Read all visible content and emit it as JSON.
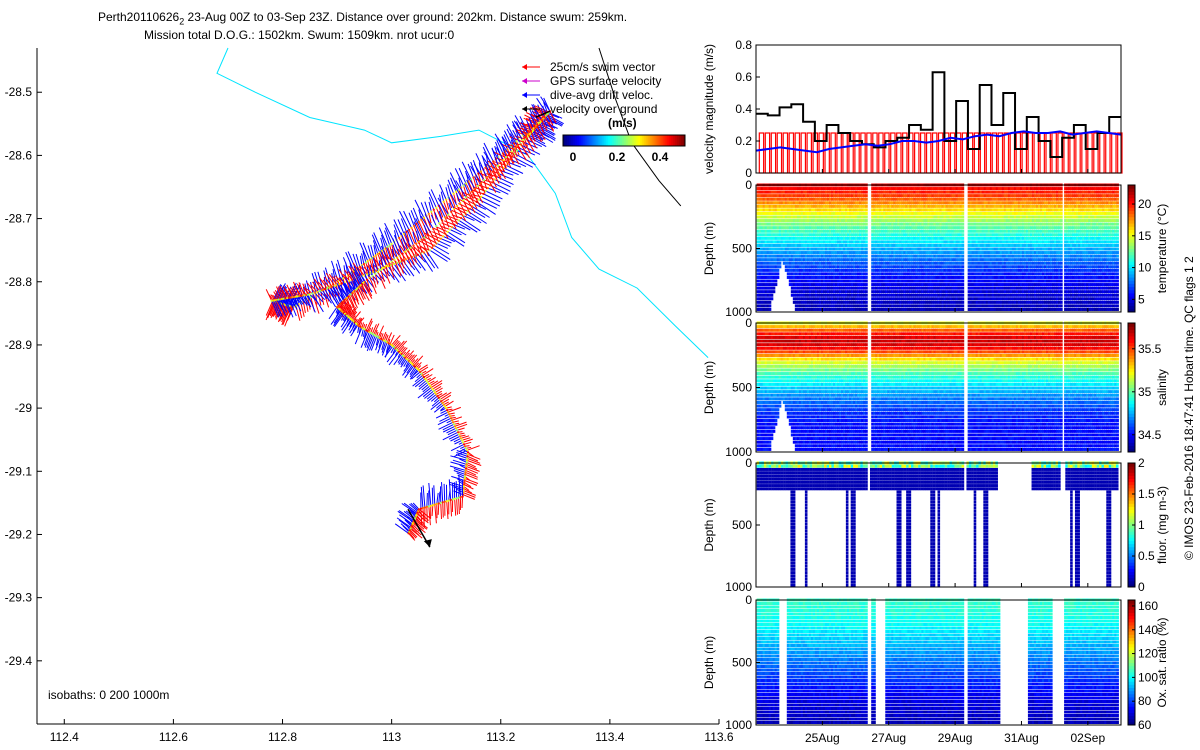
{
  "figure": {
    "title_line1_prefix": "Perth20110626",
    "title_line1_sub": "2",
    "title_line1_rest": " 23-Aug 00Z to 03-Sep 23Z. Distance over ground: 202km. Distance swum: 259km.",
    "title_line2": "Mission total D.O.G.: 1502km. Swum: 1509km. nrot ucur:0",
    "credit": "© IMOS 23-Feb-2016 18:47:41 Hobart time. QC flags 1  2"
  },
  "colors": {
    "swim": "#ff0000",
    "gps": "#cc00cc",
    "dive": "#0000ff",
    "ground": "#000000",
    "isobath": "#00e5ff",
    "axis": "#000000"
  },
  "chart_data": [
    {
      "type": "scatter",
      "id": "track_map",
      "xlim": [
        112.35,
        113.6
      ],
      "ylim": [
        -29.5,
        -28.43
      ],
      "xticks": [
        112.4,
        112.6,
        112.8,
        113,
        113.2,
        113.4,
        113.6
      ],
      "xtick_labels": [
        "112.4",
        "112.6",
        "112.8",
        "113",
        "113.2",
        "113.4",
        "113.6"
      ],
      "yticks": [
        -28.5,
        -28.6,
        -28.7,
        -28.8,
        -28.9,
        -29,
        -29.1,
        -29.2,
        -29.3,
        -29.4
      ],
      "ytick_labels": [
        "-28.5",
        "-28.6",
        "-28.7",
        "-28.8",
        "-28.9",
        "-29",
        "-29.1",
        "-29.2",
        "-29.3",
        "-29.4"
      ],
      "legend": [
        "25cm/s swim vector",
        "GPS surface velocity",
        "dive-avg drift veloc.",
        "velocity over ground"
      ],
      "colorbar_label": "(m/s)",
      "colorbar_ticks": [
        "0",
        "0.2",
        "0.4"
      ],
      "isobath_note": "isobaths: 0   200  1000m",
      "track": [
        [
          113.29,
          -28.53
        ],
        [
          113.2,
          -28.6
        ],
        [
          113.1,
          -28.67
        ],
        [
          113.0,
          -28.74
        ],
        [
          112.92,
          -28.79
        ],
        [
          112.82,
          -28.84
        ],
        [
          112.78,
          -28.83
        ],
        [
          112.85,
          -28.82
        ],
        [
          112.95,
          -28.79
        ],
        [
          113.07,
          -28.75
        ],
        [
          113.16,
          -28.67
        ],
        [
          113.25,
          -28.57
        ],
        [
          113.29,
          -28.53
        ],
        [
          113.18,
          -28.63
        ],
        [
          113.06,
          -28.73
        ],
        [
          112.95,
          -28.8
        ],
        [
          112.9,
          -28.84
        ],
        [
          112.94,
          -28.87
        ],
        [
          113.0,
          -28.9
        ],
        [
          113.05,
          -28.94
        ],
        [
          113.1,
          -29.0
        ],
        [
          113.14,
          -29.07
        ],
        [
          113.13,
          -29.14
        ],
        [
          113.05,
          -29.16
        ],
        [
          113.03,
          -29.2
        ]
      ],
      "ground_vector": [
        [
          113.03,
          -29.16
        ],
        [
          113.07,
          -29.22
        ]
      ],
      "isobath_0m": [
        [
          112.7,
          -28.43
        ],
        [
          112.68,
          -28.47
        ],
        [
          112.75,
          -28.5
        ],
        [
          112.85,
          -28.54
        ],
        [
          112.95,
          -28.56
        ],
        [
          113.0,
          -28.58
        ],
        [
          113.09,
          -28.57
        ],
        [
          113.16,
          -28.56
        ],
        [
          113.25,
          -28.6
        ],
        [
          113.3,
          -28.66
        ],
        [
          113.33,
          -28.73
        ],
        [
          113.38,
          -28.78
        ],
        [
          113.45,
          -28.81
        ],
        [
          113.52,
          -28.87
        ],
        [
          113.58,
          -28.92
        ]
      ],
      "isobath_200m": [
        [
          113.38,
          -28.43
        ],
        [
          113.41,
          -28.51
        ],
        [
          113.44,
          -28.58
        ],
        [
          113.49,
          -28.64
        ],
        [
          113.53,
          -28.68
        ]
      ]
    },
    {
      "type": "line",
      "id": "velocity",
      "ylabel": "velocity magnitude (m/s)",
      "xlim": [
        0,
        11
      ],
      "ylim": [
        0,
        0.8
      ],
      "yticks": [
        0,
        0.2,
        0.4,
        0.6,
        0.8
      ],
      "ytick_labels": [
        "0",
        "0.2",
        "0.4",
        "0.6",
        "0.8"
      ],
      "xticks": [
        2,
        4,
        6,
        8,
        10
      ],
      "xtick_labels": [
        "25Aug",
        "27Aug",
        "29Aug",
        "31Aug",
        "02Sep"
      ],
      "series": [
        {
          "name": "swim (red bars)",
          "values_note": "~0.25 m/s steps",
          "values": [
            0.25,
            0,
            0.25,
            0,
            0.25
          ]
        },
        {
          "name": "over ground (black)",
          "values": [
            0.37,
            0.36,
            0.41,
            0.43,
            0.32,
            0.2,
            0.3,
            0.25,
            0.2,
            0.18,
            0.16,
            0.2,
            0.22,
            0.3,
            0.27,
            0.63,
            0.2,
            0.45,
            0.15,
            0.55,
            0.3,
            0.5,
            0.15,
            0.35,
            0.2,
            0.1,
            0.22,
            0.3,
            0.15,
            0.25,
            0.35
          ]
        },
        {
          "name": "dive-avg (blue)",
          "values": [
            0.14,
            0.15,
            0.16,
            0.15,
            0.14,
            0.13,
            0.15,
            0.16,
            0.17,
            0.18,
            0.17,
            0.18,
            0.2,
            0.2,
            0.19,
            0.2,
            0.22,
            0.21,
            0.23,
            0.24,
            0.23,
            0.25,
            0.26,
            0.25,
            0.25,
            0.26,
            0.24,
            0.25,
            0.26,
            0.25,
            0.24
          ]
        }
      ]
    },
    {
      "type": "heatmap",
      "id": "temperature",
      "ylabel": "Depth (m)",
      "clabel": "temperature (°C)",
      "ylim": [
        1000,
        0
      ],
      "yticks": [
        0,
        500,
        1000
      ],
      "ytick_labels": [
        "0",
        "500",
        "1000"
      ],
      "cticks": [
        "5",
        "10",
        "15",
        "20"
      ],
      "crange": [
        3,
        23
      ],
      "profile_depths": [
        0,
        50,
        100,
        150,
        200,
        300,
        400,
        500,
        600,
        700,
        800,
        900,
        1000
      ],
      "profile_values": [
        21,
        20,
        19,
        17.5,
        16,
        13,
        11,
        9,
        7.5,
        6,
        5,
        4.5,
        4
      ]
    },
    {
      "type": "heatmap",
      "id": "salinity",
      "ylabel": "Depth (m)",
      "clabel": "salinity",
      "ylim": [
        1000,
        0
      ],
      "yticks": [
        0,
        500,
        1000
      ],
      "ytick_labels": [
        "0",
        "500",
        "1000"
      ],
      "cticks": [
        "34.5",
        "35",
        "35.5"
      ],
      "crange": [
        34.3,
        35.8
      ],
      "profile_depths": [
        0,
        50,
        100,
        150,
        200,
        300,
        400,
        500,
        600,
        700,
        800,
        900,
        1000
      ],
      "profile_values": [
        35.2,
        35.45,
        35.65,
        35.7,
        35.6,
        35.2,
        34.95,
        34.8,
        34.65,
        34.55,
        34.5,
        34.5,
        34.5
      ]
    },
    {
      "type": "scatter",
      "id": "fluorescence",
      "ylabel": "Depth (m)",
      "clabel": "fluor. (mg m-3)",
      "ylim": [
        1000,
        0
      ],
      "yticks": [
        0,
        500,
        1000
      ],
      "ytick_labels": [
        "0",
        "500",
        "1000"
      ],
      "cticks": [
        "0",
        "0.5",
        "1",
        "1.5",
        "2"
      ],
      "crange": [
        0,
        2
      ]
    },
    {
      "type": "heatmap",
      "id": "oxygen",
      "ylabel": "Depth (m)",
      "clabel": "Ox. sat. ratio (%)",
      "ylim": [
        1000,
        0
      ],
      "yticks": [
        0,
        500,
        1000
      ],
      "ytick_labels": [
        "0",
        "500",
        "1000"
      ],
      "cticks": [
        "60",
        "80",
        "100",
        "120",
        "140",
        "160"
      ],
      "crange": [
        60,
        165
      ],
      "profile_depths": [
        0,
        100,
        200,
        300,
        400,
        500,
        600,
        700,
        800,
        900,
        1000
      ],
      "profile_values": [
        105,
        103,
        100,
        95,
        90,
        85,
        80,
        75,
        70,
        68,
        65
      ]
    }
  ]
}
